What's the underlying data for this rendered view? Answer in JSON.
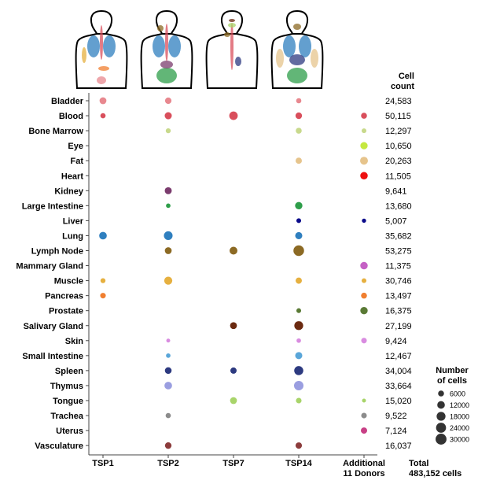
{
  "chart_data": {
    "type": "scatter",
    "subtype": "dot-plot",
    "x_categories": [
      "TSP1",
      "TSP2",
      "TSP7",
      "TSP14",
      "Additional\n11 Donors"
    ],
    "y_categories": [
      "Bladder",
      "Blood",
      "Bone Marrow",
      "Eye",
      "Fat",
      "Heart",
      "Kidney",
      "Large Intestine",
      "Liver",
      "Lung",
      "Lymph Node",
      "Mammary Gland",
      "Muscle",
      "Pancreas",
      "Prostate",
      "Salivary Gland",
      "Skin",
      "Small Intestine",
      "Spleen",
      "Thymus",
      "Tongue",
      "Trachea",
      "Uterus",
      "Vasculature"
    ],
    "cell_count_header": "Cell\ncount",
    "cell_counts": [
      "24,583",
      "50,115",
      "12,297",
      "10,650",
      "20,263",
      "11,505",
      "9,641",
      "13,680",
      "5,007",
      "35,682",
      "53,275",
      "11,375",
      "30,746",
      "13,497",
      "16,375",
      "27,199",
      "9,424",
      "12,467",
      "34,004",
      "33,664",
      "15,020",
      "9,522",
      "7,124",
      "16,037"
    ],
    "total_label": "Total\n483,152 cells",
    "tissue_colors": {
      "Bladder": "#e8888f",
      "Blood": "#d94f5c",
      "Bone Marrow": "#c8d98c",
      "Eye": "#c5e840",
      "Fat": "#e6c48c",
      "Heart": "#ee1111",
      "Kidney": "#7b3c6e",
      "Large Intestine": "#2e9e4a",
      "Liver": "#0a0a8a",
      "Lung": "#2f7fbf",
      "Lymph Node": "#8c6a24",
      "Mammary Gland": "#c561c5",
      "Muscle": "#e6b040",
      "Pancreas": "#f07f30",
      "Prostate": "#5a7a35",
      "Salivary Gland": "#6b2a10",
      "Skin": "#d98ce0",
      "Small Intestine": "#5aa6d9",
      "Spleen": "#2d3a80",
      "Thymus": "#9a9ee0",
      "Tongue": "#a8d46a",
      "Trachea": "#8c8c8c",
      "Uterus": "#c83f85",
      "Vasculature": "#8c3c3c"
    },
    "points": [
      {
        "tissue": "Bladder",
        "donor": "TSP1",
        "cells": 9000
      },
      {
        "tissue": "Bladder",
        "donor": "TSP2",
        "cells": 7500
      },
      {
        "tissue": "Bladder",
        "donor": "TSP14",
        "cells": 4000
      },
      {
        "tissue": "Blood",
        "donor": "TSP1",
        "cells": 4000
      },
      {
        "tissue": "Blood",
        "donor": "TSP2",
        "cells": 10000
      },
      {
        "tissue": "Blood",
        "donor": "TSP7",
        "cells": 16000
      },
      {
        "tissue": "Blood",
        "donor": "TSP14",
        "cells": 8000
      },
      {
        "tissue": "Blood",
        "donor": "Additional\n11 Donors",
        "cells": 6000
      },
      {
        "tissue": "Bone Marrow",
        "donor": "TSP2",
        "cells": 3500
      },
      {
        "tissue": "Bone Marrow",
        "donor": "TSP14",
        "cells": 6000
      },
      {
        "tissue": "Bone Marrow",
        "donor": "Additional\n11 Donors",
        "cells": 3000
      },
      {
        "tissue": "Eye",
        "donor": "Additional\n11 Donors",
        "cells": 10650
      },
      {
        "tissue": "Fat",
        "donor": "TSP14",
        "cells": 7000
      },
      {
        "tissue": "Fat",
        "donor": "Additional\n11 Donors",
        "cells": 13000
      },
      {
        "tissue": "Heart",
        "donor": "Additional\n11 Donors",
        "cells": 11505
      },
      {
        "tissue": "Kidney",
        "donor": "TSP2",
        "cells": 9641
      },
      {
        "tissue": "Large Intestine",
        "donor": "TSP2",
        "cells": 2500
      },
      {
        "tissue": "Large Intestine",
        "donor": "TSP14",
        "cells": 11000
      },
      {
        "tissue": "Liver",
        "donor": "TSP14",
        "cells": 3000
      },
      {
        "tissue": "Liver",
        "donor": "Additional\n11 Donors",
        "cells": 2000
      },
      {
        "tissue": "Lung",
        "donor": "TSP1",
        "cells": 12000
      },
      {
        "tissue": "Lung",
        "donor": "TSP2",
        "cells": 17000
      },
      {
        "tissue": "Lung",
        "donor": "TSP14",
        "cells": 10000
      },
      {
        "tissue": "Lymph Node",
        "donor": "TSP2",
        "cells": 9000
      },
      {
        "tissue": "Lymph Node",
        "donor": "TSP7",
        "cells": 13000
      },
      {
        "tissue": "Lymph Node",
        "donor": "TSP14",
        "cells": 28000
      },
      {
        "tissue": "Mammary Gland",
        "donor": "Additional\n11 Donors",
        "cells": 11375
      },
      {
        "tissue": "Muscle",
        "donor": "TSP1",
        "cells": 3500
      },
      {
        "tissue": "Muscle",
        "donor": "TSP2",
        "cells": 14000
      },
      {
        "tissue": "Muscle",
        "donor": "TSP14",
        "cells": 7000
      },
      {
        "tissue": "Muscle",
        "donor": "Additional\n11 Donors",
        "cells": 3000
      },
      {
        "tissue": "Pancreas",
        "donor": "TSP1",
        "cells": 5000
      },
      {
        "tissue": "Pancreas",
        "donor": "Additional\n11 Donors",
        "cells": 6000
      },
      {
        "tissue": "Prostate",
        "donor": "TSP14",
        "cells": 3000
      },
      {
        "tissue": "Prostate",
        "donor": "Additional\n11 Donors",
        "cells": 11000
      },
      {
        "tissue": "Salivary Gland",
        "donor": "TSP7",
        "cells": 9000
      },
      {
        "tissue": "Salivary Gland",
        "donor": "TSP14",
        "cells": 18000
      },
      {
        "tissue": "Skin",
        "donor": "TSP2",
        "cells": 1500
      },
      {
        "tissue": "Skin",
        "donor": "TSP14",
        "cells": 2500
      },
      {
        "tissue": "Skin",
        "donor": "Additional\n11 Donors",
        "cells": 5000
      },
      {
        "tissue": "Small Intestine",
        "donor": "TSP2",
        "cells": 2500
      },
      {
        "tissue": "Small Intestine",
        "donor": "TSP14",
        "cells": 10000
      },
      {
        "tissue": "Spleen",
        "donor": "TSP2",
        "cells": 8500
      },
      {
        "tissue": "Spleen",
        "donor": "TSP7",
        "cells": 7000
      },
      {
        "tissue": "Spleen",
        "donor": "TSP14",
        "cells": 19000
      },
      {
        "tissue": "Thymus",
        "donor": "TSP2",
        "cells": 12000
      },
      {
        "tissue": "Thymus",
        "donor": "TSP14",
        "cells": 21000
      },
      {
        "tissue": "Tongue",
        "donor": "TSP7",
        "cells": 9000
      },
      {
        "tissue": "Tongue",
        "donor": "TSP14",
        "cells": 5000
      },
      {
        "tissue": "Tongue",
        "donor": "Additional\n11 Donors",
        "cells": 1500
      },
      {
        "tissue": "Trachea",
        "donor": "TSP2",
        "cells": 4000
      },
      {
        "tissue": "Trachea",
        "donor": "Additional\n11 Donors",
        "cells": 5000
      },
      {
        "tissue": "Uterus",
        "donor": "Additional\n11 Donors",
        "cells": 7124
      },
      {
        "tissue": "Vasculature",
        "donor": "TSP2",
        "cells": 8000
      },
      {
        "tissue": "Vasculature",
        "donor": "TSP14",
        "cells": 7500
      }
    ],
    "size_legend": {
      "title": "Number\nof cells",
      "values": [
        6000,
        12000,
        18000,
        24000,
        30000
      ]
    }
  }
}
